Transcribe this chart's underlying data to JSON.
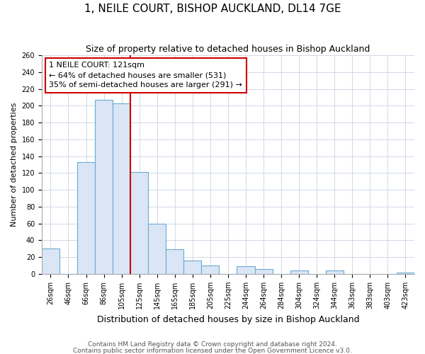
{
  "title": "1, NEILE COURT, BISHOP AUCKLAND, DL14 7GE",
  "subtitle": "Size of property relative to detached houses in Bishop Auckland",
  "xlabel": "Distribution of detached houses by size in Bishop Auckland",
  "ylabel": "Number of detached properties",
  "bin_labels": [
    "26sqm",
    "46sqm",
    "66sqm",
    "86sqm",
    "105sqm",
    "125sqm",
    "145sqm",
    "165sqm",
    "185sqm",
    "205sqm",
    "225sqm",
    "244sqm",
    "264sqm",
    "284sqm",
    "304sqm",
    "324sqm",
    "344sqm",
    "363sqm",
    "383sqm",
    "403sqm",
    "423sqm"
  ],
  "bar_heights": [
    30,
    0,
    133,
    207,
    203,
    121,
    60,
    29,
    16,
    10,
    0,
    9,
    6,
    0,
    4,
    0,
    4,
    0,
    0,
    0,
    2
  ],
  "bar_color": "#dae6f5",
  "bar_edge_color": "#6aaad4",
  "vline_x_index": 5,
  "vline_color": "#cc0000",
  "annotation_text": "1 NEILE COURT: 121sqm\n← 64% of detached houses are smaller (531)\n35% of semi-detached houses are larger (291) →",
  "annotation_box_color": "#ffffff",
  "annotation_box_edge": "#cc0000",
  "footnote1": "Contains HM Land Registry data © Crown copyright and database right 2024.",
  "footnote2": "Contains public sector information licensed under the Open Government Licence v3.0.",
  "ylim": [
    0,
    260
  ],
  "yticks": [
    0,
    20,
    40,
    60,
    80,
    100,
    120,
    140,
    160,
    180,
    200,
    220,
    240,
    260
  ],
  "title_fontsize": 11,
  "subtitle_fontsize": 9,
  "xlabel_fontsize": 9,
  "ylabel_fontsize": 8,
  "tick_fontsize": 7,
  "annotation_fontsize": 8,
  "footnote_fontsize": 6.5,
  "background_color": "#ffffff",
  "grid_color": "#d0d8e8"
}
